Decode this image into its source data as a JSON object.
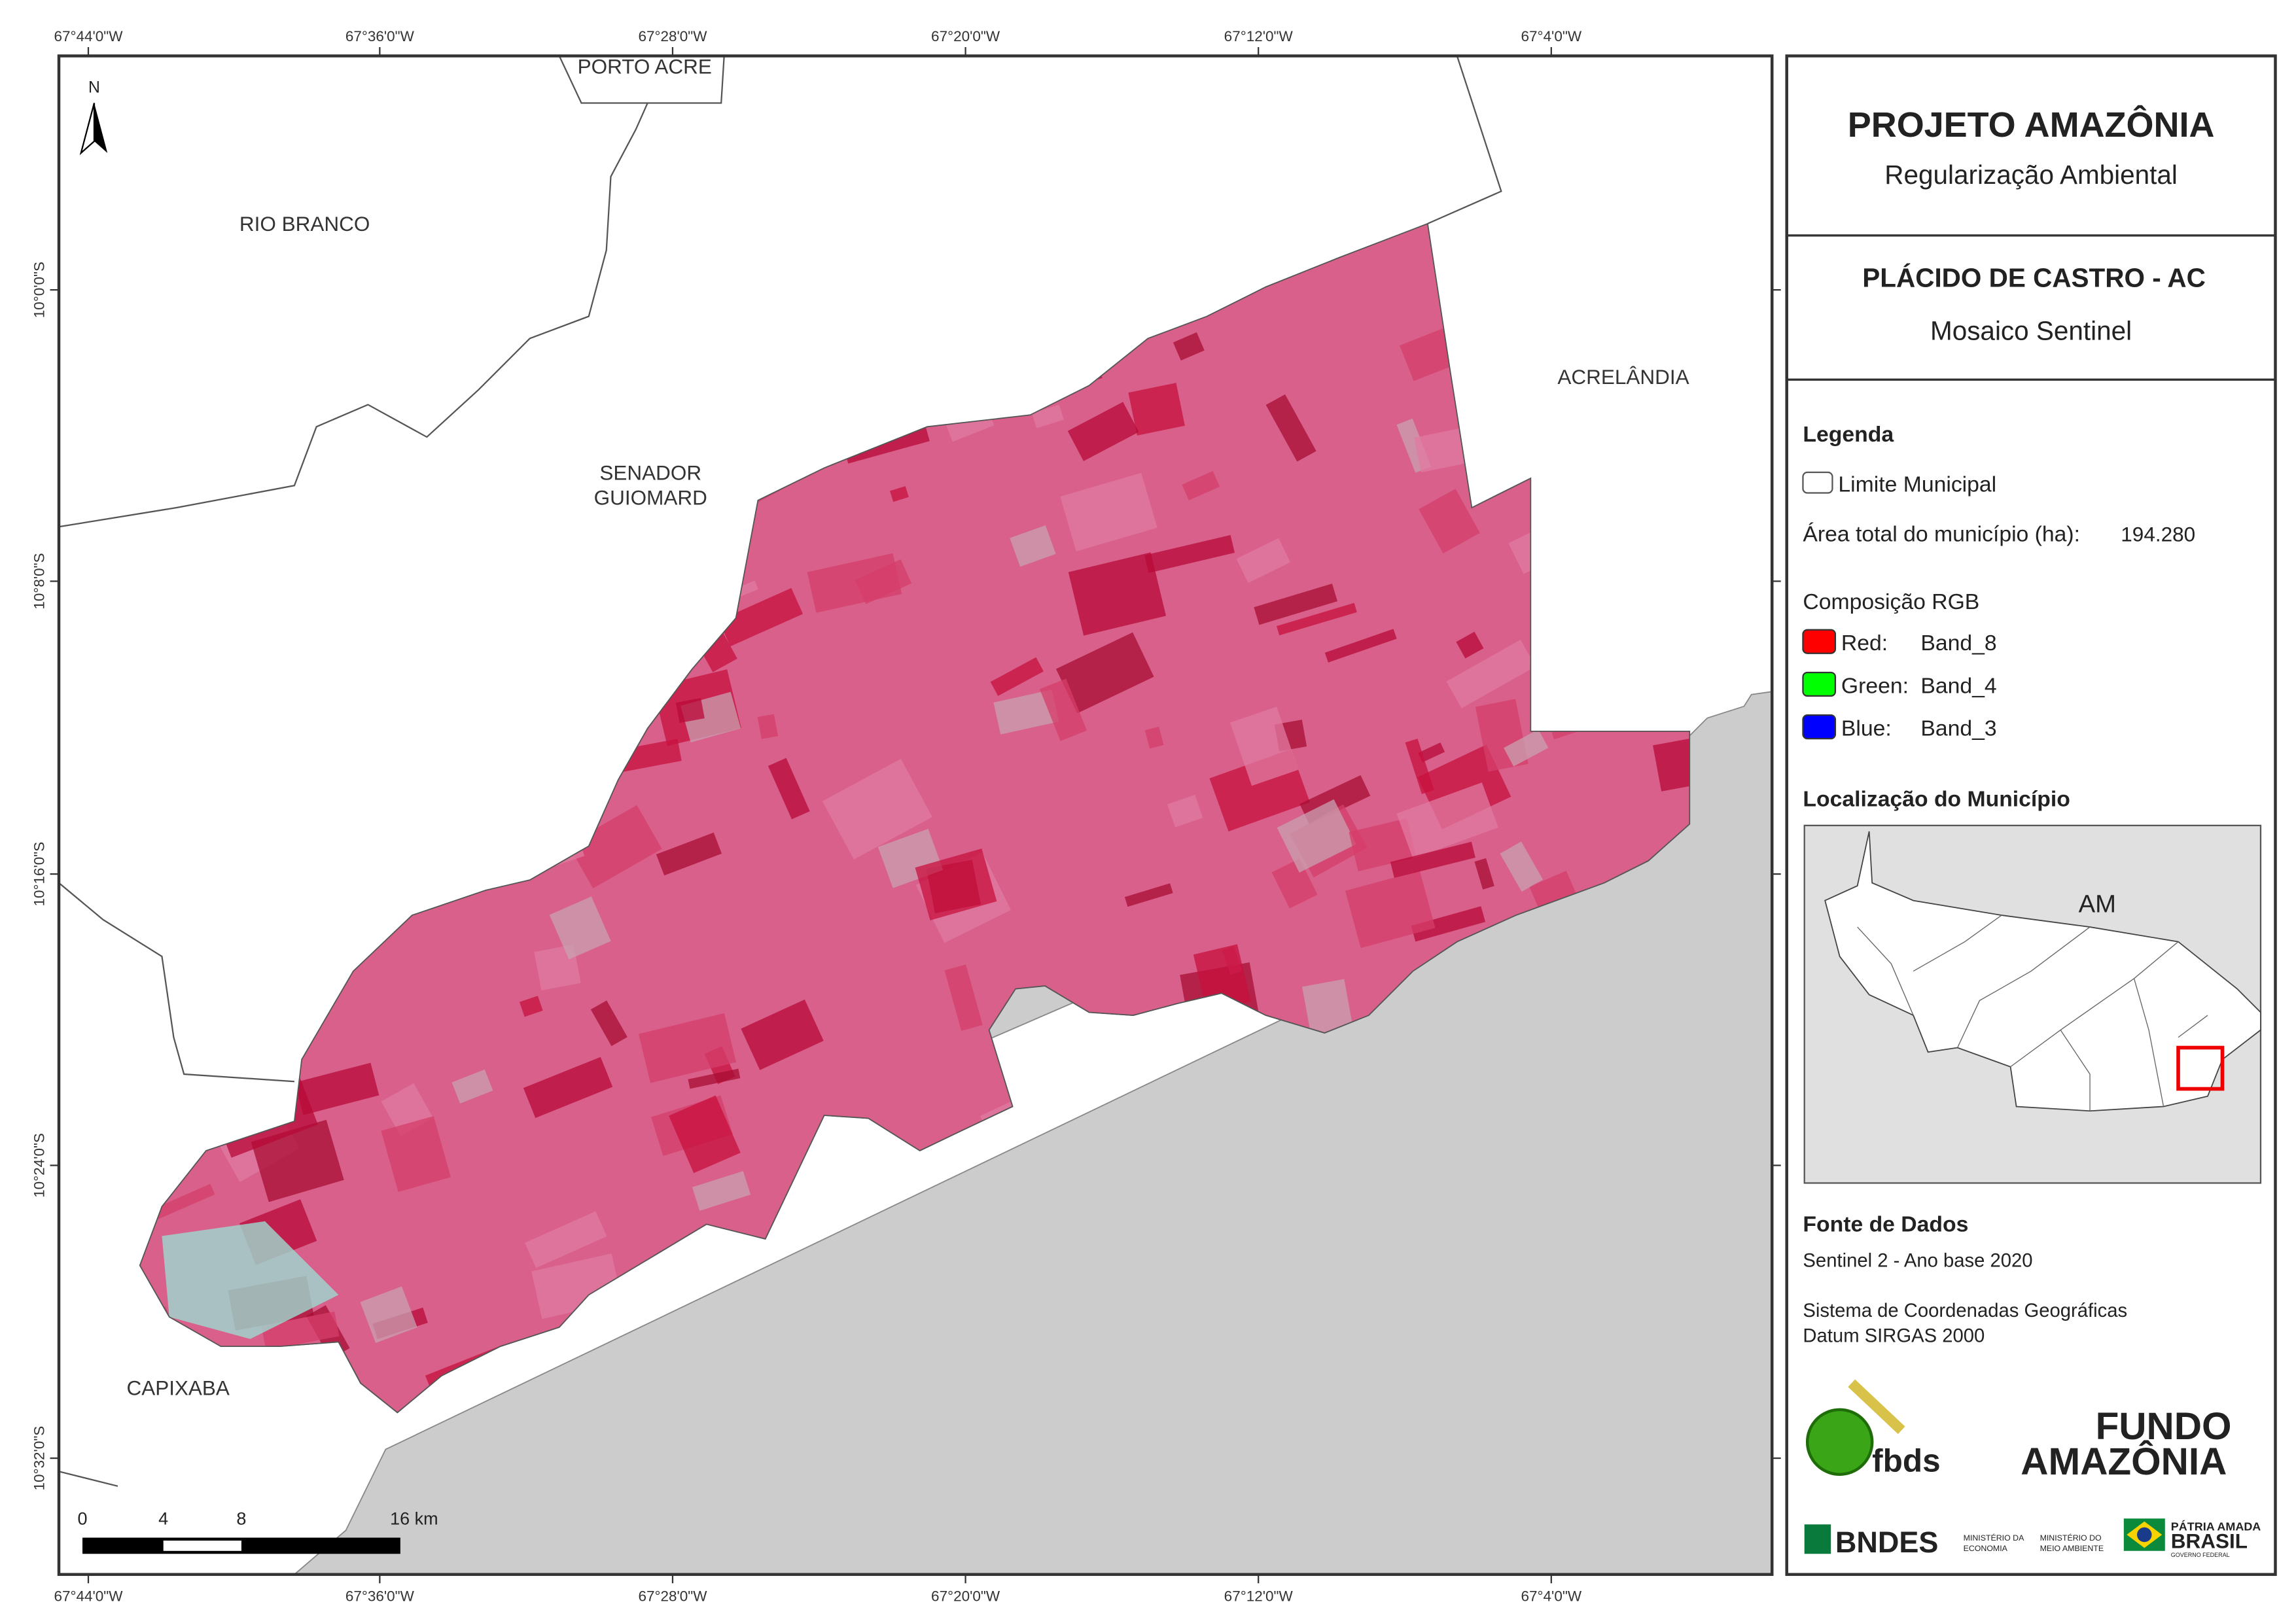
{
  "map": {
    "top_ticks": [
      "67°44'0\"W",
      "67°36'0\"W",
      "67°28'0\"W",
      "67°20'0\"W",
      "67°12'0\"W",
      "67°4'0\"W"
    ],
    "bottom_ticks": [
      "67°44'0\"W",
      "67°36'0\"W",
      "67°28'0\"W",
      "67°20'0\"W",
      "67°12'0\"W",
      "67°4'0\"W"
    ],
    "left_ticks": [
      "10°0'0\"S",
      "10°8'0\"S",
      "10°16'0\"S",
      "10°24'0\"S",
      "10°32'0\"S"
    ],
    "places": [
      "PORTO ACRE",
      "RIO BRANCO",
      "SENADOR",
      "GUIOMARD",
      "ACRELÂNDIA",
      "CAPIXABA"
    ],
    "north": "N",
    "scale": [
      "0",
      "4",
      "8",
      "16 km"
    ]
  },
  "panel": {
    "title": "PROJETO AMAZÔNIA",
    "subtitle": "Regularização Ambiental",
    "area_title": "PLÁCIDO DE CASTRO - AC",
    "area_subtitle": "Mosaico Sentinel",
    "legend": {
      "title": "Legenda",
      "boundary": "Limite Municipal",
      "area_label": "Área total do município (ha):",
      "area_value": "194.280",
      "rgb_title": "Composição RGB",
      "bands": [
        {
          "channel": "Red:",
          "band": "Band_8",
          "color": "#ff0000"
        },
        {
          "channel": "Green:",
          "band": "Band_4",
          "color": "#00ff00"
        },
        {
          "channel": "Blue:",
          "band": "Band_3",
          "color": "#0000ff"
        }
      ]
    },
    "location": {
      "title": "Localização do Município",
      "label": "AM"
    },
    "sources": {
      "title": "Fonte de Dados",
      "lines": [
        "Sentinel 2 - Ano base 2020",
        "Sistema de Coordenadas Geográficas",
        "Datum SIRGAS 2000"
      ]
    },
    "logos": [
      "fbds",
      "FUNDO",
      "AMAZÔNIA",
      "BNDES",
      "MINISTÉRIO DA",
      "ECONOMIA",
      "MINISTÉRIO DO",
      "MEIO AMBIENTE",
      "PÁTRIA AMADA",
      "BRASIL",
      "GOVERNO FEDERAL"
    ]
  }
}
